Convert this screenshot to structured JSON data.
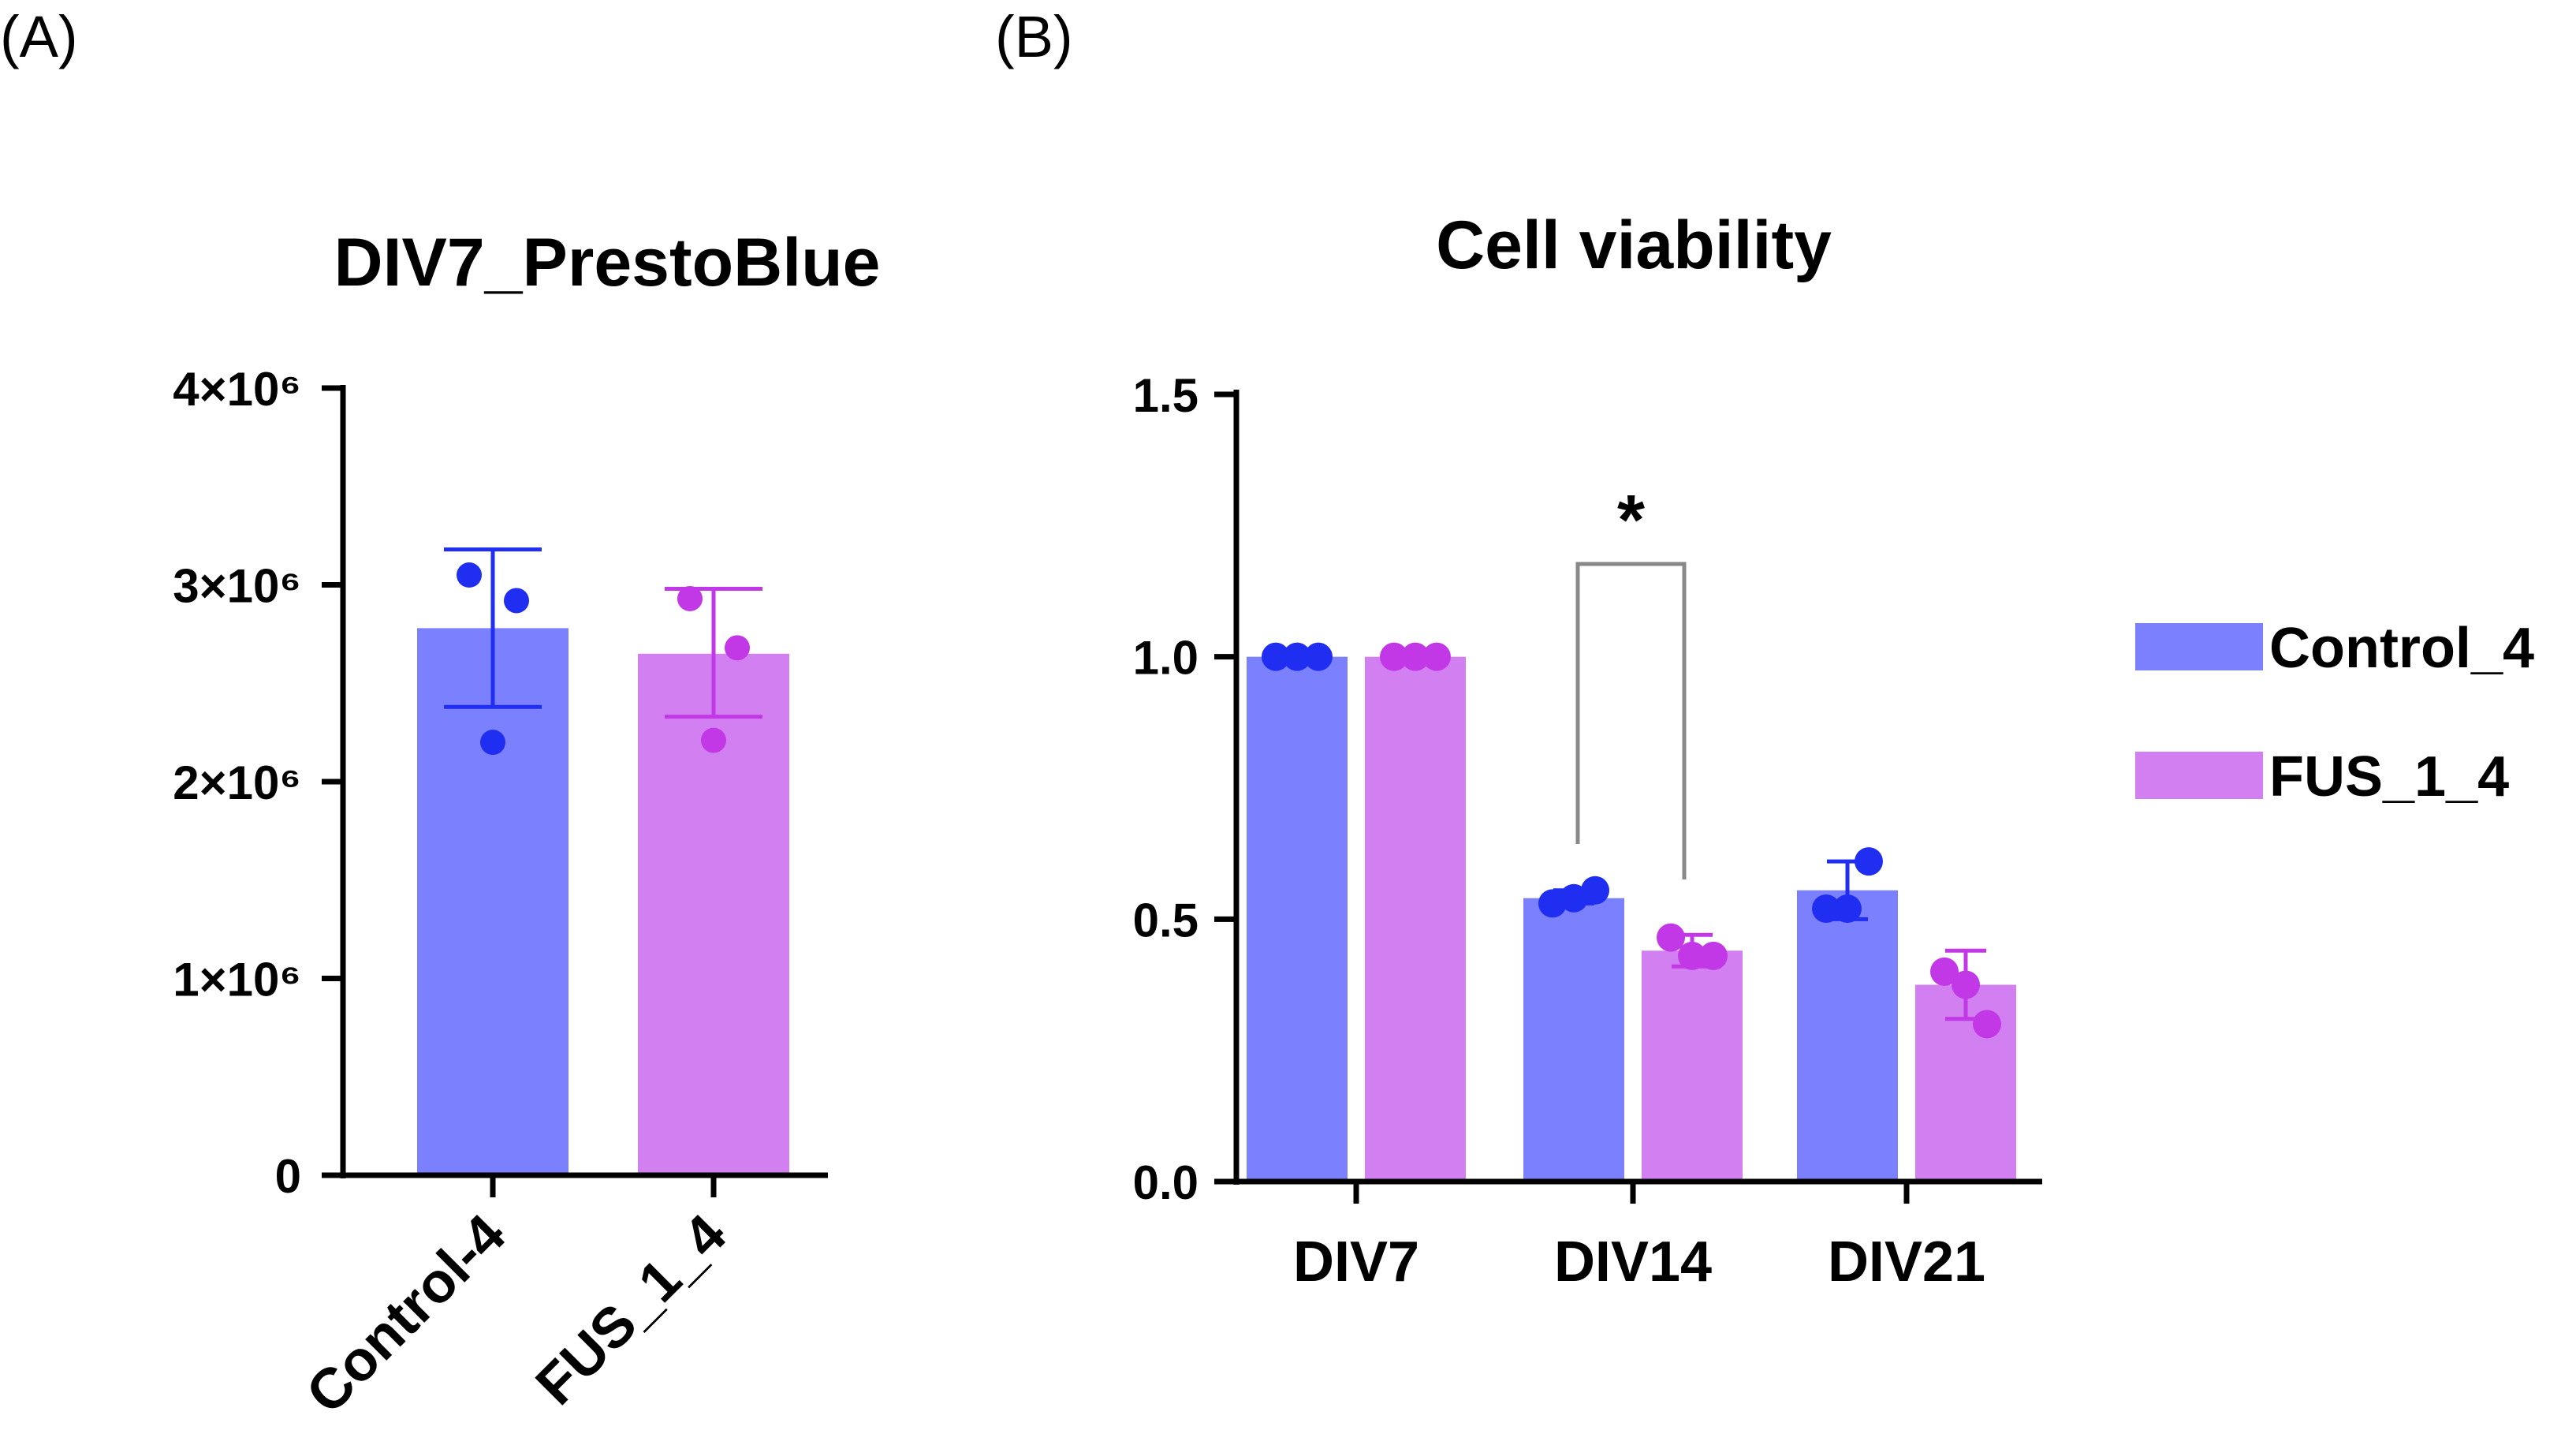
{
  "panels": {
    "a": {
      "label": "(A)"
    },
    "b": {
      "label": "(B)"
    }
  },
  "colors": {
    "control_bar": "#7b80ff",
    "fus_bar": "#d27ff2",
    "control_dot": "#1f2ef0",
    "fus_dot": "#c338e6",
    "bracket": "#888888"
  },
  "chart_data": [
    {
      "type": "bar",
      "title": "DIV7_PrestoBlue",
      "categories": [
        "Control-4",
        "FUS_1_4"
      ],
      "values": [
        2780000,
        2650000
      ],
      "error_low": [
        2380000,
        2330000
      ],
      "error_high": [
        3180000,
        2980000
      ],
      "points": [
        [
          3050000,
          2920000,
          2200000
        ],
        [
          2930000,
          2680000,
          2210000
        ]
      ],
      "ylim": [
        0,
        4000000
      ],
      "ytick_labels": [
        "0",
        "1×10⁶",
        "2×10⁶",
        "3×10⁶",
        "4×10⁶"
      ],
      "xlabel": "",
      "ylabel": ""
    },
    {
      "type": "bar",
      "title": "Cell viability",
      "categories": [
        "DIV7",
        "DIV14",
        "DIV21"
      ],
      "series": [
        {
          "name": "Control_4",
          "values": [
            1.0,
            0.54,
            0.555
          ],
          "error_low": [
            1.0,
            0.53,
            0.5
          ],
          "error_high": [
            1.0,
            0.555,
            0.61
          ],
          "points": [
            [
              1.0,
              1.0,
              1.0
            ],
            [
              0.53,
              0.54,
              0.555
            ],
            [
              0.52,
              0.52,
              0.61
            ]
          ]
        },
        {
          "name": "FUS_1_4",
          "values": [
            1.0,
            0.44,
            0.375
          ],
          "error_low": [
            1.0,
            0.41,
            0.31
          ],
          "error_high": [
            1.0,
            0.47,
            0.44
          ],
          "points": [
            [
              1.0,
              1.0,
              1.0
            ],
            [
              0.465,
              0.43,
              0.43
            ],
            [
              0.4,
              0.375,
              0.3
            ]
          ]
        }
      ],
      "ylim": [
        0,
        1.5
      ],
      "yticks": [
        0,
        0.5,
        1.0,
        1.5
      ],
      "ytick_labels": [
        "0.0",
        "0.5",
        "1.0",
        "1.5"
      ],
      "significance": {
        "category": "DIV14",
        "label": "*"
      },
      "legend": {
        "position": "right",
        "entries": [
          "Control_4",
          "FUS_1_4"
        ]
      },
      "xlabel": "",
      "ylabel": ""
    }
  ]
}
